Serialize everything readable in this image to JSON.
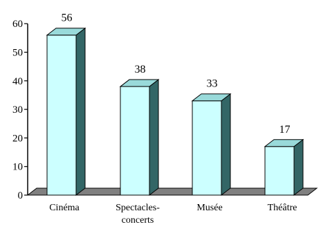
{
  "chart_data": {
    "type": "bar",
    "categories": [
      "Cinéma",
      "Spectacles-concerts",
      "Musée",
      "Théâtre"
    ],
    "category_label_lines": [
      [
        "Cinéma"
      ],
      [
        "Spectacles-",
        "concerts"
      ],
      [
        "Musée"
      ],
      [
        "Théâtre"
      ]
    ],
    "values": [
      56,
      38,
      33,
      17
    ],
    "data_labels": [
      "56",
      "38",
      "33",
      "17"
    ],
    "ylim": [
      0,
      60
    ],
    "yticks": [
      "0",
      "10",
      "20",
      "30",
      "40",
      "50",
      "60"
    ],
    "style": "3d-bar",
    "grid": false,
    "legend": "none",
    "colors": {
      "bar_front": "#ccffff",
      "bar_top": "#99dada",
      "bar_side": "#336666",
      "floor": "#808080",
      "outline": "#000000"
    }
  }
}
